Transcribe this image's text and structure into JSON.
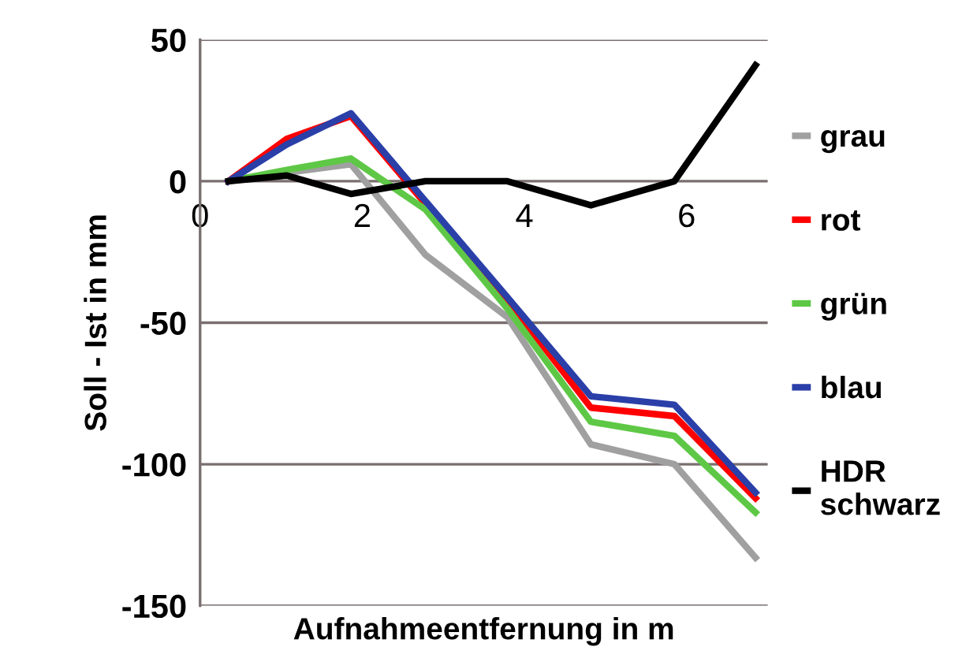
{
  "chart_data": {
    "type": "line",
    "xlabel": "Aufnahmeentfernung in m",
    "ylabel": "Soll - Ist in mm",
    "x": [
      0.35,
      1.07,
      1.86,
      2.78,
      3.79,
      4.82,
      5.85,
      6.85
    ],
    "series": [
      {
        "name": "grau",
        "color": "#a0a0a0",
        "values": [
          0,
          3,
          6,
          -26,
          -48,
          -93,
          -100,
          -133
        ]
      },
      {
        "name": "rot",
        "color": "#ff0000",
        "values": [
          0,
          15,
          23,
          -8,
          -42,
          -80,
          -83,
          -112
        ]
      },
      {
        "name": "grün",
        "color": "#5ec846",
        "values": [
          0,
          4,
          8,
          -10,
          -45,
          -85,
          -90,
          -117
        ]
      },
      {
        "name": "blau",
        "color": "#2a3fa8",
        "values": [
          0,
          13,
          24,
          -7,
          -41,
          -76,
          -79,
          -110
        ]
      },
      {
        "name": "HDR\nschwarz",
        "color": "#000000",
        "values": [
          0,
          2,
          -4.5,
          0,
          0,
          -8.5,
          0,
          41
        ]
      }
    ],
    "xlim": [
      0,
      7
    ],
    "ylim": [
      -150,
      50
    ],
    "xticks": [
      0,
      2,
      4,
      6
    ],
    "yticks": [
      -150,
      -100,
      -50,
      0,
      50
    ],
    "grid": "y",
    "legend": "right",
    "marker": "none",
    "line_style": "solid"
  }
}
